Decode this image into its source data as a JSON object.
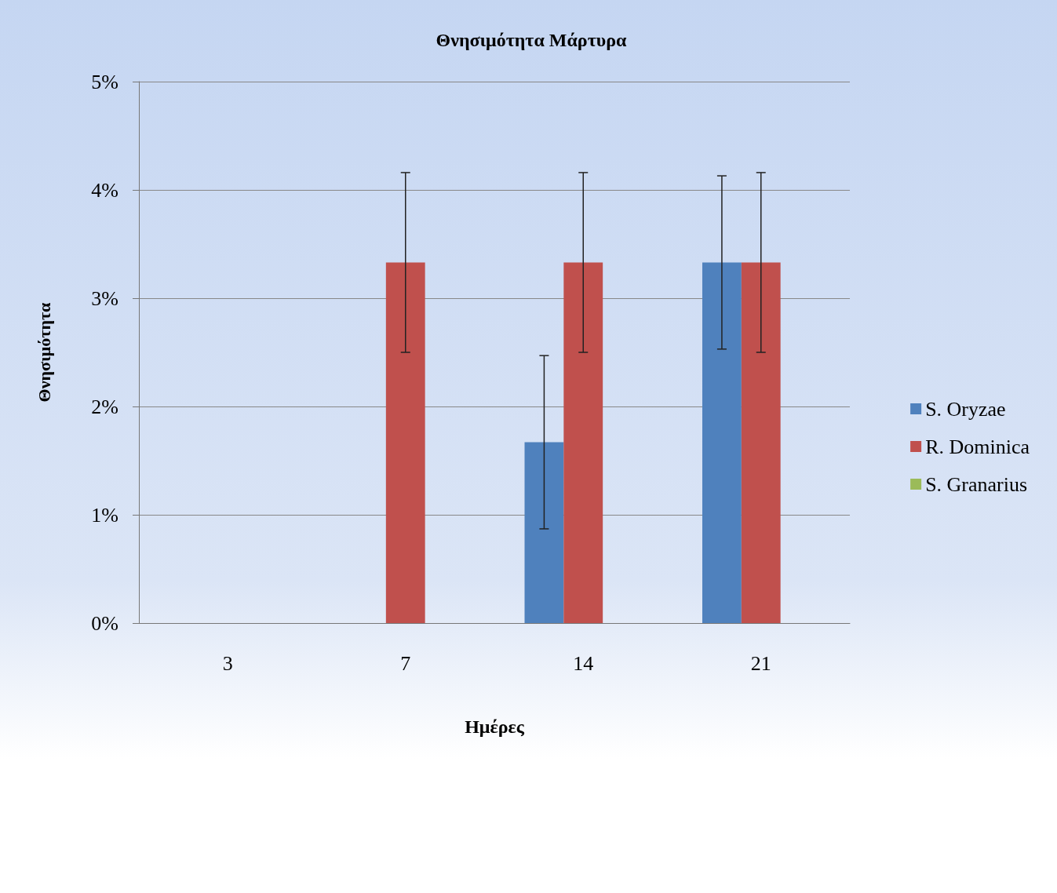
{
  "chart_data": {
    "type": "bar",
    "title": "Θνησιμότητα Μάρτυρα",
    "xlabel": "Ημέρες",
    "ylabel": "Θνησιμότητα",
    "categories": [
      "3",
      "7",
      "14",
      "21"
    ],
    "series": [
      {
        "name": "S. Oryzae",
        "color": "#4f81bd",
        "values": [
          0,
          0,
          1.67,
          3.33
        ],
        "errors": [
          null,
          null,
          0.8,
          0.8
        ]
      },
      {
        "name": "R. Dominica",
        "color": "#c0504d",
        "values": [
          0,
          3.33,
          3.33,
          3.33
        ],
        "errors": [
          null,
          0.83,
          0.83,
          0.83
        ]
      },
      {
        "name": "S. Granarius",
        "color": "#9bbb59",
        "values": [
          0,
          0,
          0,
          0
        ],
        "errors": [
          null,
          null,
          null,
          null
        ]
      }
    ],
    "ylim": [
      0,
      5
    ],
    "yticks": [
      {
        "value": 0,
        "label": "0%"
      },
      {
        "value": 1,
        "label": "1%"
      },
      {
        "value": 2,
        "label": "2%"
      },
      {
        "value": 3,
        "label": "3%"
      },
      {
        "value": 4,
        "label": "4%"
      },
      {
        "value": 5,
        "label": "5%"
      }
    ],
    "grid": "y",
    "legend": "right"
  }
}
